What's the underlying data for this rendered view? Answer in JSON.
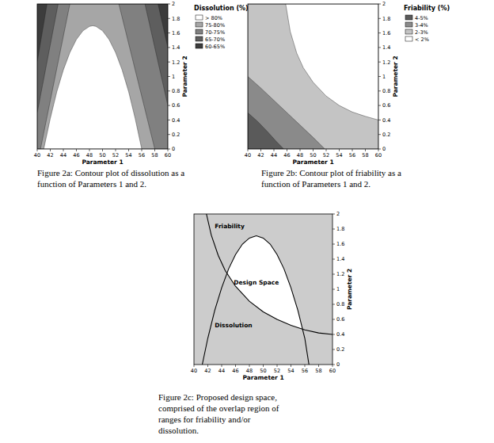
{
  "chart_data": [
    {
      "type": "contour",
      "caption": [
        "Figure 2a: Contour plot of dissolution as a",
        "function of Parameters 1 and 2."
      ],
      "x_label": "Parameter 1",
      "y_label": "Parameter 2",
      "xlim": [
        40,
        60
      ],
      "ylim": [
        0,
        2
      ],
      "xticks": [
        40,
        42,
        44,
        46,
        48,
        50,
        52,
        54,
        56,
        58,
        60
      ],
      "yticks": [
        0,
        0.2,
        0.4,
        0.6,
        0.8,
        1,
        1.2,
        1.4,
        1.6,
        1.8,
        2
      ],
      "legend_title": "Dissolution (%)",
      "legend": "right",
      "series": [
        {
          "name": "> 80%",
          "color": "#ffffff",
          "x": [
            41,
            42,
            43,
            44,
            45,
            46,
            47,
            48,
            48.5,
            49,
            50,
            51,
            52,
            53,
            54,
            55,
            56
          ],
          "values": [
            0,
            0.42,
            0.79,
            1.09,
            1.33,
            1.51,
            1.63,
            1.69,
            1.7,
            1.69,
            1.63,
            1.51,
            1.33,
            1.09,
            0.79,
            0.42,
            0
          ]
        },
        {
          "name": "75-80%",
          "color": "#a6a6a6",
          "x": [
            40.5,
            58,
            52.5,
            45
          ],
          "values": [
            0,
            0,
            2,
            2
          ]
        },
        {
          "name": "70-75%",
          "color": "#808080",
          "x": [
            40,
            60,
            60,
            56.5,
            43.2,
            40
          ],
          "values": [
            0,
            0,
            0.6,
            2,
            2,
            0.5
          ]
        },
        {
          "name": "65-70%",
          "color": "#5e5e5e",
          "x": [
            40,
            60,
            60,
            58.5,
            41.5,
            40
          ],
          "values": [
            0,
            0,
            1.4,
            2,
            2,
            1.2
          ]
        },
        {
          "name": "60-65%",
          "color": "#3c3c3c",
          "x": [
            40,
            60,
            60,
            40
          ],
          "values": [
            0,
            0,
            2,
            2
          ]
        }
      ]
    },
    {
      "type": "contour",
      "caption": [
        "Figure 2b: Contour plot of friability as a",
        "function of Parameters 1 and 2."
      ],
      "x_label": "Parameter 1",
      "y_label": "Parameter 2",
      "xlim": [
        40,
        60
      ],
      "ylim": [
        0,
        2
      ],
      "xticks": [
        40,
        42,
        44,
        46,
        48,
        50,
        52,
        54,
        56,
        58,
        60
      ],
      "yticks": [
        0,
        0.2,
        0.4,
        0.6,
        0.8,
        1,
        1.2,
        1.4,
        1.6,
        1.8,
        2
      ],
      "legend_title": "Friability (%)",
      "legend": "right",
      "series": [
        {
          "name": "4-5%",
          "color": "#5a5a5a",
          "x": [
            40,
            60,
            60,
            40
          ],
          "values": [
            0,
            0,
            2,
            2
          ]
        },
        {
          "name": "3-4%",
          "color": "#8a8a8a",
          "x": [
            40,
            41.5,
            43,
            44.4,
            45.5,
            60,
            60,
            40
          ],
          "values": [
            0.5,
            0.38,
            0.24,
            0.1,
            0,
            0,
            2,
            2
          ]
        },
        {
          "name": "2-3%",
          "color": "#c4c4c4",
          "x": [
            40,
            42,
            44,
            46,
            48,
            50,
            51.8,
            60,
            60,
            40
          ],
          "values": [
            1,
            0.84,
            0.67,
            0.5,
            0.33,
            0.16,
            0,
            0,
            2,
            2
          ]
        },
        {
          "name": "< 2%",
          "color": "#ffffff",
          "x": [
            45.8,
            46.5,
            47.5,
            48.5,
            50,
            52,
            54,
            56,
            58,
            60,
            60
          ],
          "values": [
            2,
            1.62,
            1.32,
            1.12,
            0.92,
            0.73,
            0.6,
            0.51,
            0.45,
            0.4,
            2
          ]
        }
      ]
    },
    {
      "type": "line",
      "caption": [
        "Figure 2c: Proposed design space,",
        "comprised of the overlap region of",
        "ranges for friability and/or",
        "dissolution."
      ],
      "x_label": "Parameter 1",
      "y_label": "Parameter 2",
      "xlim": [
        40,
        60
      ],
      "ylim": [
        0,
        2
      ],
      "xticks": [
        40,
        42,
        44,
        46,
        48,
        50,
        52,
        54,
        56,
        58,
        60
      ],
      "yticks": [
        0,
        0.2,
        0.4,
        0.6,
        0.8,
        1,
        1.2,
        1.4,
        1.6,
        1.8,
        2
      ],
      "annotations": [
        "Design Space"
      ],
      "series": [
        {
          "name": "Dissolution",
          "color": "#000000",
          "x": [
            41.2,
            42,
            43,
            44,
            45,
            46,
            47,
            48,
            49,
            50,
            51,
            52,
            53,
            54,
            55,
            56,
            56.6
          ],
          "values": [
            0,
            0.35,
            0.72,
            1.02,
            1.27,
            1.46,
            1.6,
            1.68,
            1.71,
            1.68,
            1.6,
            1.46,
            1.27,
            1.02,
            0.72,
            0.35,
            0
          ]
        },
        {
          "name": "Friability",
          "color": "#000000",
          "x": [
            41.8,
            42.5,
            43.5,
            44.5,
            46,
            48,
            50,
            52,
            54,
            56,
            58,
            60
          ],
          "values": [
            2,
            1.72,
            1.45,
            1.25,
            1.04,
            0.84,
            0.7,
            0.6,
            0.52,
            0.46,
            0.42,
            0.4
          ]
        }
      ]
    }
  ]
}
